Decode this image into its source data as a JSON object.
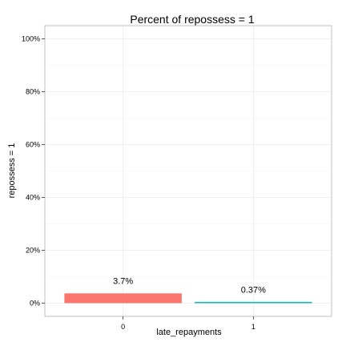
{
  "chart_data": {
    "type": "bar",
    "title": "Percent of repossess = 1",
    "xlabel": "late_repayments",
    "ylabel": "repossess = 1",
    "categories": [
      "0",
      "1"
    ],
    "values": [
      3.7,
      0.37
    ],
    "data_labels": [
      "3.7%",
      "0.37%"
    ],
    "colors": [
      "#F8766D",
      "#00BFC4"
    ],
    "ylim": [
      -5,
      105
    ],
    "y_ticks": [
      0,
      20,
      40,
      60,
      80,
      100
    ],
    "y_tick_labels": [
      "0%",
      "20%",
      "40%",
      "60%",
      "80%",
      "100%"
    ],
    "grid": true,
    "legend": "none"
  }
}
